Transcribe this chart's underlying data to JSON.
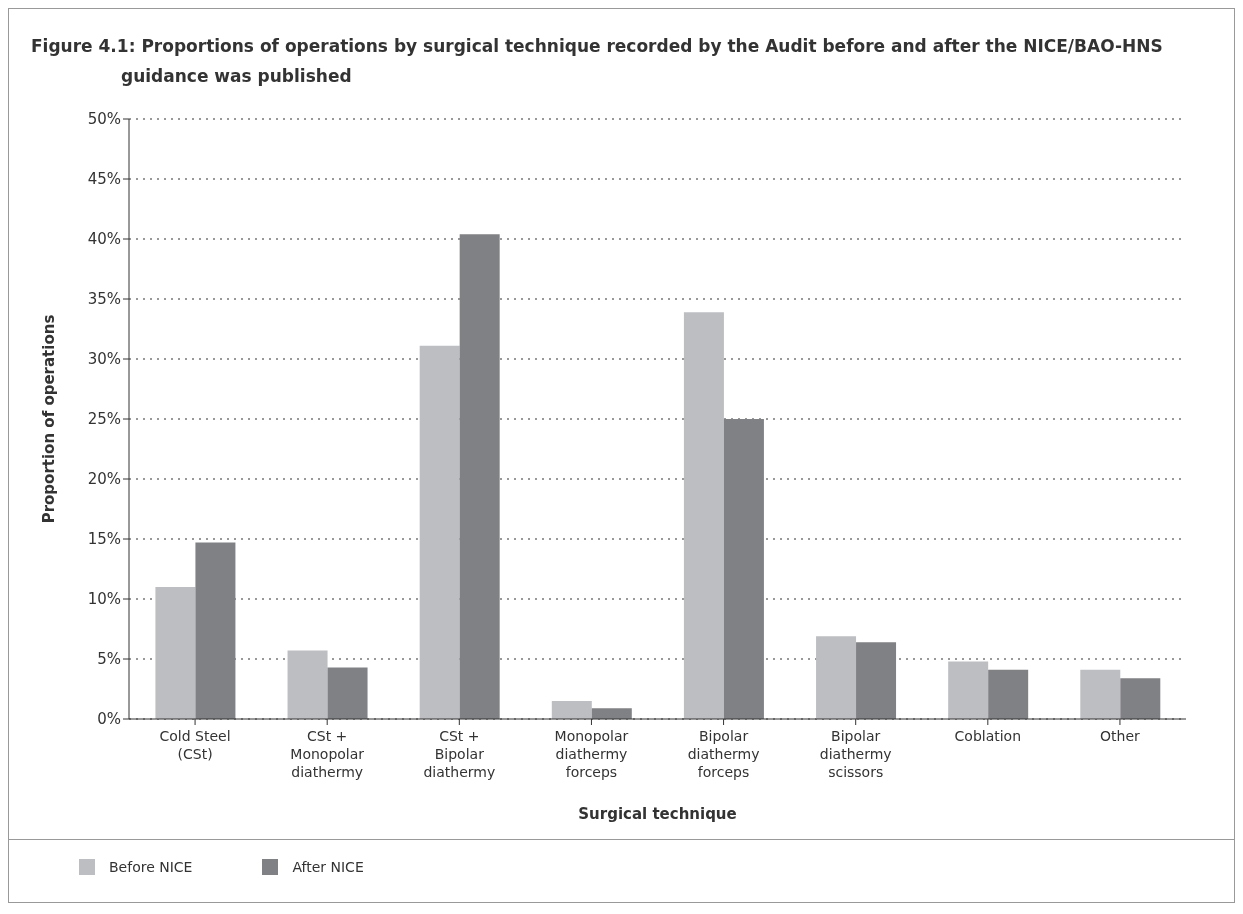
{
  "chart_data": {
    "type": "bar",
    "title": "Figure 4.1: Proportions of operations by surgical technique recorded by the Audit before and after the NICE/BAO-HNS guidance was published",
    "xlabel": "Surgical technique",
    "ylabel": "Proportion of operations",
    "categories": [
      "Cold Steel (CSt)",
      "CSt + Monopolar diathermy",
      "CSt + Bipolar diathermy",
      "Monopolar diathermy forceps",
      "Bipolar diathermy forceps",
      "Bipolar diathermy scissors",
      "Coblation",
      "Other"
    ],
    "series": [
      {
        "name": "Before NICE",
        "color": "#bdbec2",
        "values": [
          11,
          5.7,
          31.1,
          1.5,
          33.9,
          6.9,
          4.8,
          4.1
        ]
      },
      {
        "name": "After NICE",
        "color": "#808185",
        "values": [
          14.7,
          4.3,
          40.4,
          0.9,
          25,
          6.4,
          4.1,
          3.4
        ]
      }
    ],
    "ylim": [
      0,
      50
    ],
    "yticks": [
      {
        "value": 0,
        "label": "0%"
      },
      {
        "value": 5,
        "label": "5%"
      },
      {
        "value": 10,
        "label": "10%"
      },
      {
        "value": 15,
        "label": "15%"
      },
      {
        "value": 20,
        "label": "20%"
      },
      {
        "value": 25,
        "label": "25%"
      },
      {
        "value": 30,
        "label": "30%"
      },
      {
        "value": 35,
        "label": "35%"
      },
      {
        "value": 40,
        "label": "40%"
      },
      {
        "value": 45,
        "label": "45%"
      },
      {
        "value": 50,
        "label": "50%"
      }
    ],
    "grid": "y",
    "legend": "bottom left"
  }
}
